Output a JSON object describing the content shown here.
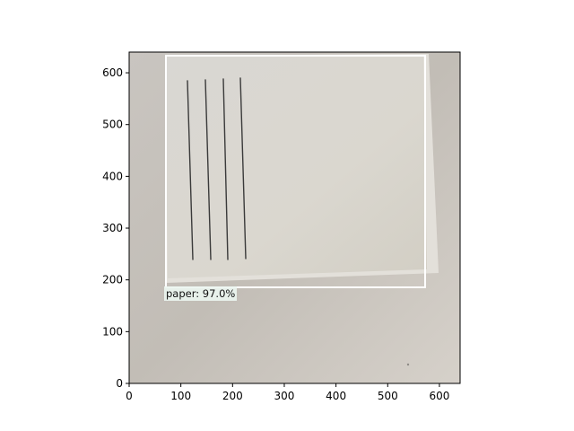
{
  "plot": {
    "x_ticks": [
      "0",
      "100",
      "200",
      "300",
      "400",
      "500",
      "600"
    ],
    "y_ticks": [
      "0",
      "100",
      "200",
      "300",
      "400",
      "500",
      "600"
    ],
    "x_range": [
      0,
      640
    ],
    "y_range": [
      640,
      0
    ]
  },
  "image": {
    "content": "photo of a sheet of paper with four vertical pencil lines",
    "line_count": 4
  },
  "detection": {
    "label": "paper: 97.0%",
    "class": "paper",
    "score": 0.97,
    "box_color": "#ffffff"
  },
  "colors": {
    "background": "#ffffff",
    "desk": "#c8c2ba",
    "paper": "#dedbd4",
    "box": "#ffffff"
  }
}
